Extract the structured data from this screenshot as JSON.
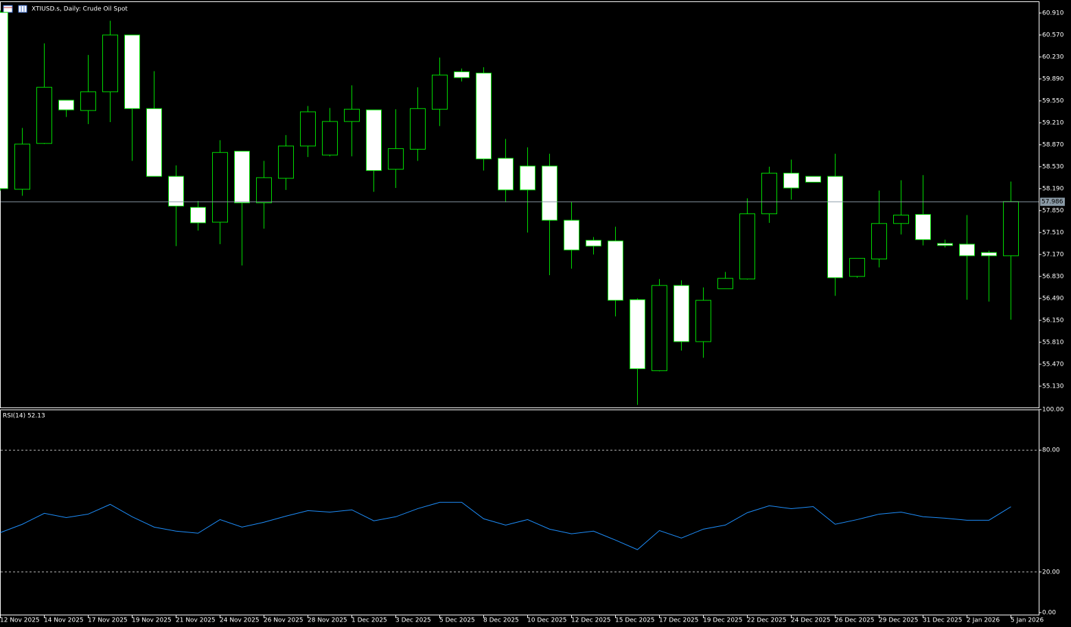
{
  "chart_data": [
    {
      "type": "candlestick",
      "title": "XTIUSD.s, Daily:  Crude Oil Spot",
      "categories": [
        "12 Nov 2025",
        null,
        "14 Nov 2025",
        null,
        "17 Nov 2025",
        null,
        "19 Nov 2025",
        null,
        "21 Nov 2025",
        null,
        "24 Nov 2025",
        null,
        "26 Nov 2025",
        null,
        "28 Nov 2025",
        null,
        "1 Dec 2025",
        null,
        "3 Dec 2025",
        null,
        "5 Dec 2025",
        null,
        "8 Dec 2025",
        null,
        "10 Dec 2025",
        null,
        "12 Dec 2025",
        null,
        "15 Dec 2025",
        null,
        "17 Dec 2025",
        null,
        "19 Dec 2025",
        null,
        "22 Dec 2025",
        null,
        "24 Dec 2025",
        null,
        "26 Dec 2025",
        null,
        "29 Dec 2025",
        null,
        "31 Dec 2025",
        null,
        "2 Jan 2026",
        null,
        "5 Jan 2026"
      ],
      "open": [
        60.92,
        58.18,
        58.89,
        59.56,
        59.4,
        59.69,
        60.57,
        59.43,
        58.38,
        57.9,
        57.67,
        58.77,
        57.97,
        58.35,
        58.85,
        58.71,
        59.23,
        59.41,
        58.49,
        58.8,
        59.42,
        60.0,
        59.98,
        58.66,
        58.54,
        58.54,
        57.7,
        57.39,
        57.38,
        56.47,
        55.37,
        56.69,
        55.82,
        56.64,
        56.79,
        57.8,
        58.43,
        58.38,
        58.38,
        56.83,
        57.1,
        57.65,
        57.79,
        57.34,
        57.33,
        57.2,
        57.15
      ],
      "high": [
        60.95,
        59.13,
        60.44,
        59.56,
        60.26,
        60.79,
        60.57,
        60.01,
        58.55,
        58.0,
        58.94,
        58.77,
        58.62,
        59.02,
        59.47,
        59.44,
        59.79,
        59.41,
        59.42,
        59.76,
        60.22,
        60.05,
        60.07,
        58.96,
        58.83,
        58.73,
        57.98,
        57.44,
        57.6,
        56.49,
        56.79,
        56.77,
        56.66,
        56.9,
        58.04,
        58.53,
        58.64,
        58.38,
        58.73,
        57.11,
        58.16,
        58.32,
        58.4,
        57.4,
        57.78,
        57.23,
        58.3
      ],
      "low": [
        58.16,
        58.08,
        58.88,
        59.3,
        59.19,
        59.22,
        58.62,
        58.38,
        57.3,
        57.54,
        57.33,
        57.0,
        57.57,
        58.17,
        58.68,
        58.69,
        58.69,
        58.14,
        58.2,
        58.62,
        59.16,
        59.85,
        58.47,
        57.98,
        57.51,
        56.85,
        56.95,
        57.17,
        56.21,
        54.84,
        55.36,
        55.68,
        55.57,
        56.64,
        56.78,
        57.66,
        58.02,
        58.29,
        56.53,
        56.81,
        56.97,
        57.48,
        57.31,
        57.28,
        56.47,
        56.44,
        56.16
      ],
      "close": [
        58.19,
        58.88,
        59.76,
        59.41,
        59.69,
        60.57,
        59.43,
        58.38,
        57.92,
        57.66,
        58.75,
        57.97,
        58.36,
        58.85,
        59.38,
        59.23,
        59.42,
        58.47,
        58.81,
        59.43,
        59.95,
        59.91,
        58.65,
        58.17,
        58.17,
        57.7,
        57.24,
        57.3,
        56.46,
        55.4,
        56.69,
        55.82,
        56.46,
        56.8,
        57.8,
        58.43,
        58.2,
        58.29,
        56.81,
        57.11,
        57.65,
        57.78,
        57.4,
        57.31,
        57.15,
        57.15,
        57.99
      ],
      "ylim": [
        54.8,
        61.08
      ],
      "yticks": [
        {
          "value": 60.91,
          "label": "60.910"
        },
        {
          "value": 60.57,
          "label": "60.570"
        },
        {
          "value": 60.23,
          "label": "60.230"
        },
        {
          "value": 59.89,
          "label": "59.890"
        },
        {
          "value": 59.55,
          "label": "59.550"
        },
        {
          "value": 59.21,
          "label": "59.210"
        },
        {
          "value": 58.87,
          "label": "58.870"
        },
        {
          "value": 58.53,
          "label": "58.530"
        },
        {
          "value": 58.19,
          "label": "58.190"
        },
        {
          "value": 57.85,
          "label": "57.850"
        },
        {
          "value": 57.51,
          "label": "57.510"
        },
        {
          "value": 57.17,
          "label": "57.170"
        },
        {
          "value": 56.83,
          "label": "56.830"
        },
        {
          "value": 56.49,
          "label": "56.490"
        },
        {
          "value": 56.15,
          "label": "56.150"
        },
        {
          "value": 55.81,
          "label": "55.810"
        },
        {
          "value": 55.47,
          "label": "55.470"
        },
        {
          "value": 55.13,
          "label": "55.130"
        }
      ],
      "last_price": 57.986,
      "outline_color": "#00e000",
      "up_color": "#000000",
      "down_color": "#ffffff",
      "price_line_color": "#8a9aa6"
    },
    {
      "type": "line",
      "title": "RSI(14) 52.13",
      "values": [
        39.4,
        43.5,
        48.9,
        46.8,
        48.5,
        53.3,
        47.2,
        42.1,
        40.1,
        39.1,
        45.8,
        42.1,
        44.5,
        47.5,
        50.2,
        49.5,
        50.6,
        45.2,
        47.2,
        51.2,
        54.3,
        54.3,
        46.2,
        43.1,
        45.8,
        41.1,
        38.8,
        40.1,
        35.7,
        31.0,
        40.4,
        36.7,
        41.1,
        43.1,
        49.2,
        52.6,
        51.2,
        52.2,
        43.5,
        45.8,
        48.5,
        49.5,
        47.2,
        46.5,
        45.5,
        45.5,
        52.13
      ],
      "color": "#1e90ff",
      "ylim": [
        0,
        100
      ],
      "yticks": [
        {
          "value": 100,
          "label": "100.00"
        },
        {
          "value": 80,
          "label": "80.00"
        },
        {
          "value": 20,
          "label": "20.00"
        },
        {
          "value": 0,
          "label": "0.00"
        }
      ]
    }
  ]
}
